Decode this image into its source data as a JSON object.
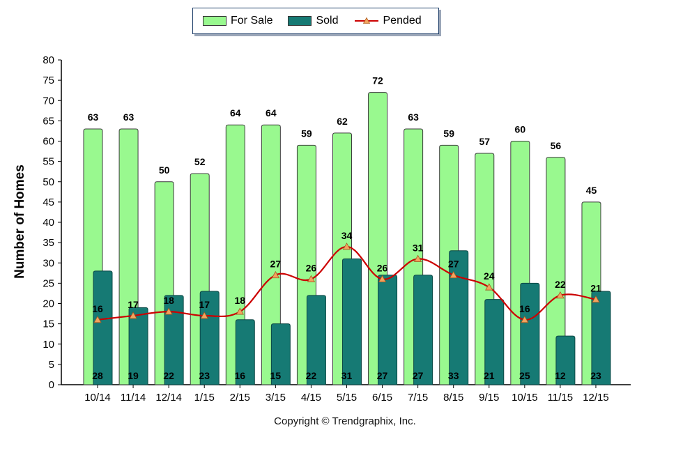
{
  "chart_data": {
    "type": "bar",
    "categories": [
      "10/14",
      "11/14",
      "12/14",
      "1/15",
      "2/15",
      "3/15",
      "4/15",
      "5/15",
      "6/15",
      "7/15",
      "8/15",
      "9/15",
      "10/15",
      "11/15",
      "12/15"
    ],
    "series": [
      {
        "name": "For Sale",
        "type": "bar",
        "color": "#99f98f",
        "values": [
          63,
          63,
          50,
          52,
          64,
          64,
          59,
          62,
          72,
          63,
          59,
          57,
          60,
          56,
          45
        ]
      },
      {
        "name": "Sold",
        "type": "bar",
        "color": "#167a74",
        "values": [
          28,
          19,
          22,
          23,
          16,
          15,
          22,
          31,
          27,
          27,
          33,
          21,
          25,
          12,
          23
        ]
      },
      {
        "name": "Pended",
        "type": "line",
        "color": "#cc0000",
        "marker_color": "#f2a35e",
        "values": [
          16,
          17,
          18,
          17,
          18,
          27,
          26,
          34,
          26,
          31,
          27,
          24,
          16,
          22,
          21
        ]
      }
    ],
    "ylabel": "Number of Homes",
    "xlabel": "",
    "ylim": [
      0,
      80
    ],
    "yticks": [
      0,
      5,
      10,
      15,
      20,
      25,
      30,
      35,
      40,
      45,
      50,
      55,
      60,
      65,
      70,
      75,
      80
    ],
    "legend_position": "top-center",
    "grid": false
  },
  "legend": {
    "for_sale": "For Sale",
    "sold": "Sold",
    "pended": "Pended"
  },
  "footer": {
    "copyright": "Copyright © Trendgraphix, Inc."
  }
}
